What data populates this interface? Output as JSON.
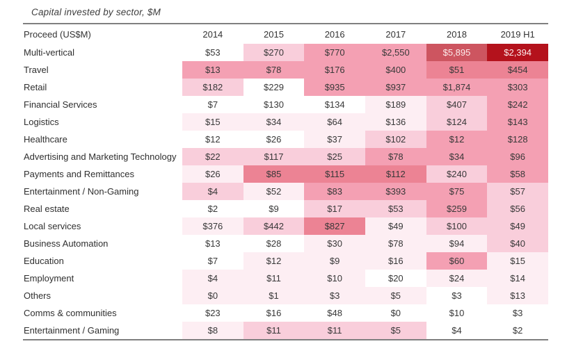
{
  "chart_data": {
    "type": "heatmap",
    "title": "Capital invested by sector, $M",
    "corner_label": "Proceed (US$M)",
    "unit": "US$M",
    "columns": [
      "2014",
      "2015",
      "2016",
      "2017",
      "2018",
      "2019 H1"
    ],
    "rows": [
      {
        "label": "Multi-vertical",
        "values": [
          53,
          270,
          770,
          2550,
          5895,
          2394
        ],
        "display": [
          "$53",
          "$270",
          "$770",
          "$2,550",
          "$5,895",
          "$2,394"
        ],
        "shades": [
          0,
          2,
          3,
          3,
          5,
          6
        ]
      },
      {
        "label": "Travel",
        "values": [
          13,
          78,
          176,
          400,
          51,
          454
        ],
        "display": [
          "$13",
          "$78",
          "$176",
          "$400",
          "$51",
          "$454"
        ],
        "shades": [
          3,
          3,
          3,
          3,
          4,
          4
        ]
      },
      {
        "label": "Retail",
        "values": [
          182,
          229,
          935,
          937,
          1874,
          303
        ],
        "display": [
          "$182",
          "$229",
          "$935",
          "$937",
          "$1,874",
          "$303"
        ],
        "shades": [
          2,
          0,
          3,
          3,
          3,
          3
        ]
      },
      {
        "label": "Financial Services",
        "values": [
          7,
          130,
          134,
          189,
          407,
          242
        ],
        "display": [
          "$7",
          "$130",
          "$134",
          "$189",
          "$407",
          "$242"
        ],
        "shades": [
          0,
          0,
          0,
          1,
          2,
          3
        ]
      },
      {
        "label": "Logistics",
        "values": [
          15,
          34,
          64,
          136,
          124,
          143
        ],
        "display": [
          "$15",
          "$34",
          "$64",
          "$136",
          "$124",
          "$143"
        ],
        "shades": [
          1,
          1,
          1,
          1,
          2,
          3
        ]
      },
      {
        "label": "Healthcare",
        "values": [
          12,
          26,
          37,
          102,
          12,
          128
        ],
        "display": [
          "$12",
          "$26",
          "$37",
          "$102",
          "$12",
          "$128"
        ],
        "shades": [
          0,
          0,
          1,
          2,
          3,
          3
        ]
      },
      {
        "label": "Advertising and Marketing Technology",
        "values": [
          22,
          117,
          25,
          78,
          34,
          96
        ],
        "display": [
          "$22",
          "$117",
          "$25",
          "$78",
          "$34",
          "$96"
        ],
        "shades": [
          2,
          2,
          2,
          3,
          3,
          3
        ]
      },
      {
        "label": "Payments and Remittances",
        "values": [
          26,
          85,
          115,
          112,
          240,
          58
        ],
        "display": [
          "$26",
          "$85",
          "$115",
          "$112",
          "$240",
          "$58"
        ],
        "shades": [
          1,
          4,
          4,
          4,
          2,
          3
        ]
      },
      {
        "label": "Entertainment / Non-Gaming",
        "values": [
          4,
          52,
          83,
          393,
          75,
          57
        ],
        "display": [
          "$4",
          "$52",
          "$83",
          "$393",
          "$75",
          "$57"
        ],
        "shades": [
          2,
          1,
          3,
          3,
          3,
          2
        ]
      },
      {
        "label": "Real estate",
        "values": [
          2,
          9,
          17,
          53,
          259,
          56
        ],
        "display": [
          "$2",
          "$9",
          "$17",
          "$53",
          "$259",
          "$56"
        ],
        "shades": [
          0,
          0,
          2,
          2,
          3,
          2
        ]
      },
      {
        "label": "Local services",
        "values": [
          376,
          442,
          827,
          49,
          100,
          49
        ],
        "display": [
          "$376",
          "$442",
          "$827",
          "$49",
          "$100",
          "$49"
        ],
        "shades": [
          1,
          2,
          4,
          1,
          2,
          2
        ]
      },
      {
        "label": "Business Automation",
        "values": [
          13,
          28,
          30,
          78,
          94,
          40
        ],
        "display": [
          "$13",
          "$28",
          "$30",
          "$78",
          "$94",
          "$40"
        ],
        "shades": [
          0,
          0,
          1,
          1,
          1,
          2
        ]
      },
      {
        "label": "Education",
        "values": [
          7,
          12,
          9,
          16,
          60,
          15
        ],
        "display": [
          "$7",
          "$12",
          "$9",
          "$16",
          "$60",
          "$15"
        ],
        "shades": [
          0,
          1,
          1,
          1,
          3,
          1
        ]
      },
      {
        "label": "Employment",
        "values": [
          4,
          11,
          10,
          20,
          24,
          14
        ],
        "display": [
          "$4",
          "$11",
          "$10",
          "$20",
          "$24",
          "$14"
        ],
        "shades": [
          1,
          1,
          1,
          0,
          1,
          1
        ]
      },
      {
        "label": "Others",
        "values": [
          0,
          1,
          3,
          5,
          3,
          13
        ],
        "display": [
          "$0",
          "$1",
          "$3",
          "$5",
          "$3",
          "$13"
        ],
        "shades": [
          1,
          1,
          1,
          1,
          0,
          1
        ]
      },
      {
        "label": "Comms & communities",
        "values": [
          23,
          16,
          48,
          0,
          10,
          3
        ],
        "display": [
          "$23",
          "$16",
          "$48",
          "$0",
          "$10",
          "$3"
        ],
        "shades": [
          0,
          0,
          0,
          0,
          0,
          0
        ]
      },
      {
        "label": "Entertainment / Gaming",
        "values": [
          8,
          11,
          11,
          5,
          4,
          2
        ],
        "display": [
          "$8",
          "$11",
          "$11",
          "$5",
          "$4",
          "$2"
        ],
        "shades": [
          1,
          2,
          2,
          2,
          0,
          0
        ]
      }
    ],
    "heat_palette": [
      "#ffffff",
      "#fdeef3",
      "#f9cedb",
      "#f4a0b3",
      "#ec8394",
      "#cd5560",
      "#b4121c"
    ],
    "light_text_from_shade": 5,
    "layout": {
      "legend": "none",
      "grid": "off"
    },
    "colors": {
      "cell_text_dark": "#383838",
      "cell_text_light": "#fdecec",
      "rule": "#7f7f7f"
    }
  }
}
